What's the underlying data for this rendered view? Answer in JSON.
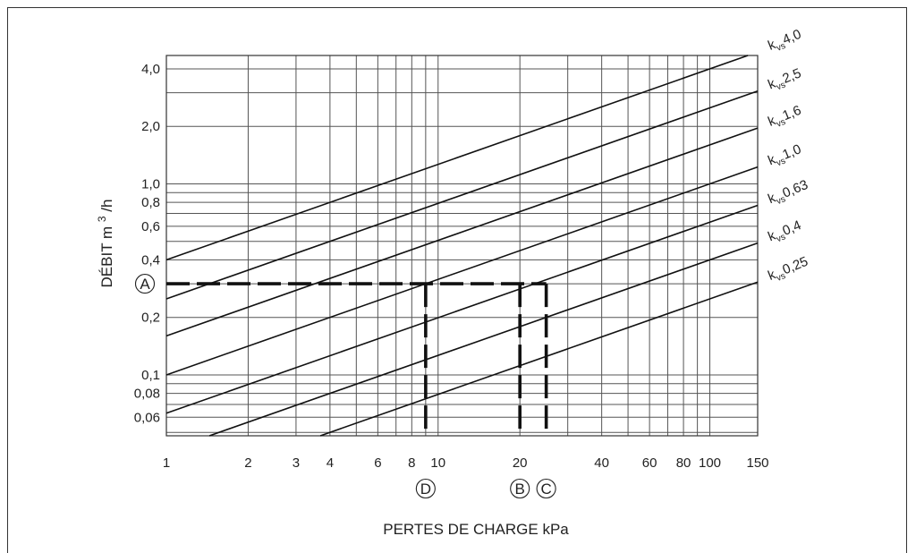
{
  "chart_data": {
    "type": "line",
    "xscale": "log",
    "yscale": "log",
    "xlim": [
      1,
      150
    ],
    "ylim": [
      0.048,
      4.7
    ],
    "grid": true,
    "xlabel": "PERTES DE CHARGE kPa",
    "ylabel": "DÉBIT m",
    "ylabel_sup": "3",
    "ylabel_tail": "/h",
    "x_ticks": [
      {
        "v": 1,
        "label": "1"
      },
      {
        "v": 2,
        "label": "2"
      },
      {
        "v": 3,
        "label": "3"
      },
      {
        "v": 4,
        "label": "4"
      },
      {
        "v": 6,
        "label": "6"
      },
      {
        "v": 8,
        "label": "8"
      },
      {
        "v": 10,
        "label": "10"
      },
      {
        "v": 20,
        "label": "20"
      },
      {
        "v": 40,
        "label": "40"
      },
      {
        "v": 60,
        "label": "60"
      },
      {
        "v": 80,
        "label": "80"
      },
      {
        "v": 100,
        "label": "100"
      },
      {
        "v": 150,
        "label": "150"
      }
    ],
    "x_grid": [
      1,
      2,
      3,
      4,
      5,
      6,
      7,
      8,
      9,
      10,
      20,
      30,
      40,
      50,
      60,
      70,
      80,
      90,
      100,
      150
    ],
    "y_ticks": [
      {
        "v": 0.06,
        "label": "0,06"
      },
      {
        "v": 0.08,
        "label": "0,08"
      },
      {
        "v": 0.1,
        "label": "0,1"
      },
      {
        "v": 0.2,
        "label": "0,2"
      },
      {
        "v": 0.4,
        "label": "0,4"
      },
      {
        "v": 0.6,
        "label": "0,6"
      },
      {
        "v": 0.8,
        "label": "0,8"
      },
      {
        "v": 1.0,
        "label": "1,0"
      },
      {
        "v": 2.0,
        "label": "2,0"
      },
      {
        "v": 4.0,
        "label": "4,0"
      }
    ],
    "y_grid": [
      0.05,
      0.06,
      0.07,
      0.08,
      0.09,
      0.1,
      0.2,
      0.3,
      0.4,
      0.5,
      0.6,
      0.7,
      0.8,
      0.9,
      1.0,
      2.0,
      3.0,
      4.0
    ],
    "series": [
      {
        "kvs": 4.0,
        "prefix": "k",
        "sub": "vs",
        "value": "4,0"
      },
      {
        "kvs": 2.5,
        "prefix": "k",
        "sub": "vs",
        "value": "2,5"
      },
      {
        "kvs": 1.6,
        "prefix": "k",
        "sub": "vs",
        "value": "1,6"
      },
      {
        "kvs": 1.0,
        "prefix": "k",
        "sub": "vs",
        "value": "1,0"
      },
      {
        "kvs": 0.63,
        "prefix": "k",
        "sub": "vs",
        "value": "0,63"
      },
      {
        "kvs": 0.4,
        "prefix": "k",
        "sub": "vs",
        "value": "0,4"
      },
      {
        "kvs": 0.25,
        "prefix": "k",
        "sub": "vs",
        "value": "0,25"
      }
    ],
    "example": {
      "flow": 0.3,
      "point_a_label": "A",
      "markers": [
        {
          "label": "D",
          "kvs": 1.0,
          "dp": 9.0
        },
        {
          "label": "B",
          "kvs": 0.63,
          "dp": 20.0
        },
        {
          "label": "C",
          "kvs": 0.6,
          "dp": 25.0
        }
      ]
    }
  }
}
